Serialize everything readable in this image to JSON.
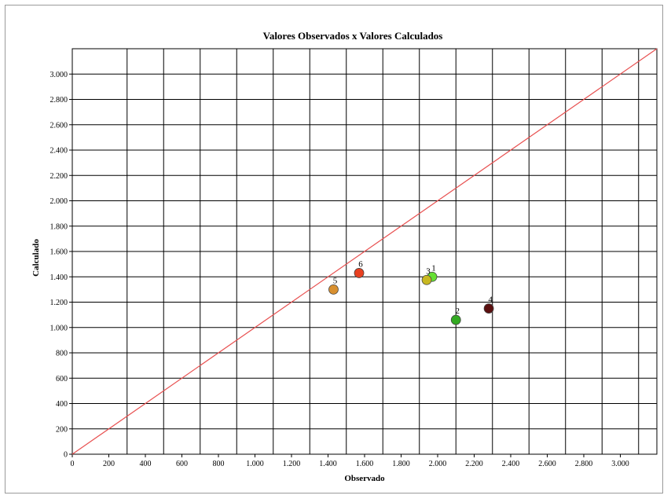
{
  "chart_data": {
    "type": "scatter",
    "title": "Valores Observados x Valores Calculados",
    "xlabel": "Observado",
    "ylabel": "Calculado",
    "xlim": [
      0,
      3200
    ],
    "ylim": [
      0,
      3200
    ],
    "grid": true,
    "x_ticks": [
      {
        "v": 0,
        "label": "0"
      },
      {
        "v": 200,
        "label": "200"
      },
      {
        "v": 400,
        "label": "400"
      },
      {
        "v": 600,
        "label": "600"
      },
      {
        "v": 800,
        "label": "800"
      },
      {
        "v": 1000,
        "label": "1.000"
      },
      {
        "v": 1200,
        "label": "1.200"
      },
      {
        "v": 1400,
        "label": "1.400"
      },
      {
        "v": 1600,
        "label": "1.600"
      },
      {
        "v": 1800,
        "label": "1.800"
      },
      {
        "v": 2000,
        "label": "2.000"
      },
      {
        "v": 2200,
        "label": "2.200"
      },
      {
        "v": 2400,
        "label": "2.400"
      },
      {
        "v": 2600,
        "label": "2.600"
      },
      {
        "v": 2800,
        "label": "2.800"
      },
      {
        "v": 3000,
        "label": "3.000"
      }
    ],
    "y_ticks": [
      {
        "v": 0,
        "label": "0"
      },
      {
        "v": 200,
        "label": "200"
      },
      {
        "v": 400,
        "label": "400"
      },
      {
        "v": 600,
        "label": "600"
      },
      {
        "v": 800,
        "label": "800"
      },
      {
        "v": 1000,
        "label": "1.000"
      },
      {
        "v": 1200,
        "label": "1.200"
      },
      {
        "v": 1400,
        "label": "1.400"
      },
      {
        "v": 1600,
        "label": "1.600"
      },
      {
        "v": 1800,
        "label": "1.800"
      },
      {
        "v": 2000,
        "label": "2.000"
      },
      {
        "v": 2200,
        "label": "2.200"
      },
      {
        "v": 2400,
        "label": "2.400"
      },
      {
        "v": 2600,
        "label": "2.600"
      },
      {
        "v": 2800,
        "label": "2.800"
      },
      {
        "v": 3000,
        "label": "3.000"
      }
    ],
    "x_grid": [
      300,
      500,
      700,
      900,
      1100,
      1300,
      1500,
      1700,
      1900,
      2100,
      2300,
      2500,
      2700,
      2900,
      3100
    ],
    "reference_line": {
      "from": [
        0,
        0
      ],
      "to": [
        3200,
        3200
      ],
      "color": "#e85050"
    },
    "points": [
      {
        "label": "1",
        "x": 1970,
        "y": 1400,
        "color": "#66e033"
      },
      {
        "label": "2",
        "x": 2100,
        "y": 1060,
        "color": "#33aa22"
      },
      {
        "label": "3",
        "x": 1940,
        "y": 1375,
        "color": "#c8b820"
      },
      {
        "label": "4",
        "x": 2280,
        "y": 1150,
        "color": "#5a0f0f"
      },
      {
        "label": "5",
        "x": 1430,
        "y": 1300,
        "color": "#d89030"
      },
      {
        "label": "6",
        "x": 1570,
        "y": 1430,
        "color": "#e84020"
      }
    ]
  }
}
